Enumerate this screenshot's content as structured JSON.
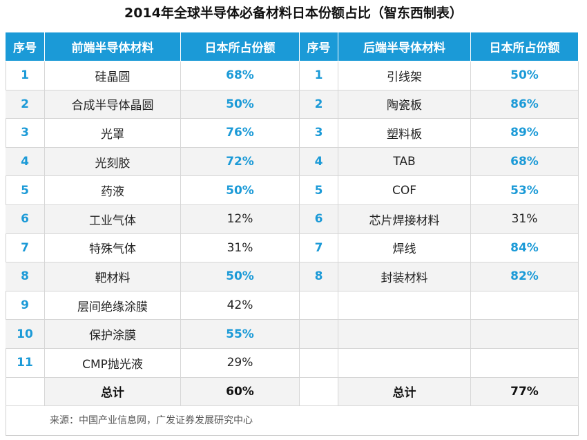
{
  "title": "2014年全球半导体必备材料日本份额占比（智东西制表）",
  "table": {
    "left_header": [
      "序号",
      "前端半导体材料",
      "日本所占份额"
    ],
    "right_header": [
      "序号",
      "后端半导体材料",
      "日本所占份额"
    ],
    "left_rows": [
      [
        "1",
        "硅晶圆",
        "68%"
      ],
      [
        "2",
        "合成半导体晶圆",
        "50%"
      ],
      [
        "3",
        "光罩",
        "76%"
      ],
      [
        "4",
        "光刻胶",
        "72%"
      ],
      [
        "5",
        "药液",
        "50%"
      ],
      [
        "6",
        "工业气体",
        "12%"
      ],
      [
        "7",
        "特殊气体",
        "31%"
      ],
      [
        "8",
        "靶材料",
        "50%"
      ],
      [
        "9",
        "层间绝缘涂膜",
        "42%"
      ],
      [
        "10",
        "保护涂膜",
        "55%"
      ],
      [
        "11",
        "CMP抛光液",
        "29%"
      ]
    ],
    "right_rows": [
      [
        "1",
        "引线架",
        "50%"
      ],
      [
        "2",
        "陶瓷板",
        "86%"
      ],
      [
        "3",
        "塑料板",
        "89%"
      ],
      [
        "4",
        "TAB",
        "68%"
      ],
      [
        "5",
        "COF",
        "53%"
      ],
      [
        "6",
        "芯片焊接材料",
        "31%"
      ],
      [
        "7",
        "焊线",
        "84%"
      ],
      [
        "8",
        "封装材料",
        "82%"
      ]
    ],
    "left_total": [
      "总计",
      "60%"
    ],
    "right_total": [
      "总计",
      "77%"
    ]
  },
  "source": "来源：中国产业信息网，广发证券发展研究中心"
}
